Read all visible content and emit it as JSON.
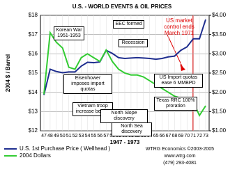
{
  "chart_data": {
    "type": "line",
    "title": "U.S. - WORLD EVENTS & OIL PRICES",
    "x_label": "1947 - 1973",
    "y_label": "2004 $ / Barrel",
    "categories": [
      "47",
      "48",
      "49",
      "50",
      "51",
      "52",
      "53",
      "54",
      "55",
      "56",
      "57",
      "58",
      "59",
      "60",
      "61",
      "62",
      "63",
      "64",
      "65",
      "66",
      "67",
      "68",
      "69",
      "70",
      "71",
      "72",
      "73"
    ],
    "series": [
      {
        "name": "U.S. 1st Purchase Price ( Wellhead )",
        "color": "#1f2e8f",
        "axis": "y2",
        "values": [
          1.93,
          2.6,
          2.54,
          2.51,
          2.53,
          2.53,
          2.68,
          2.78,
          2.77,
          2.79,
          3.09,
          3.01,
          2.9,
          2.88,
          2.89,
          2.9,
          2.89,
          2.88,
          2.86,
          2.88,
          2.92,
          2.94,
          3.09,
          3.18,
          3.39,
          3.39,
          3.89
        ]
      },
      {
        "name": "2004 Dollars",
        "color": "#33cc33",
        "axis": "y",
        "values": [
          13.9,
          17.1,
          16.6,
          16.3,
          15.3,
          15.2,
          15.8,
          16.0,
          15.8,
          15.6,
          16.2,
          15.6,
          15.2,
          15.0,
          14.9,
          14.9,
          14.8,
          14.6,
          14.4,
          14.2,
          14.0,
          13.8,
          13.7,
          13.4,
          13.5,
          12.8,
          13.3
        ]
      }
    ],
    "ylim": [
      12,
      18
    ],
    "yticks": [
      {
        "value": 12,
        "label": "$12"
      },
      {
        "value": 13,
        "label": "$13"
      },
      {
        "value": 14,
        "label": "$14"
      },
      {
        "value": 15,
        "label": "$15"
      },
      {
        "value": 16,
        "label": "$16"
      },
      {
        "value": 17,
        "label": "$17"
      },
      {
        "value": 18,
        "label": "$18"
      }
    ],
    "y2lim": [
      1,
      4
    ],
    "y2ticks": [
      {
        "value": 1,
        "label": "$1.00"
      },
      {
        "value": 1.5,
        "label": "$1.50"
      },
      {
        "value": 2,
        "label": "$2.00"
      },
      {
        "value": 2.5,
        "label": "$2.50"
      },
      {
        "value": 3,
        "label": "$3.00"
      },
      {
        "value": 3.5,
        "label": "$3.50"
      },
      {
        "value": 4,
        "label": "$4.00"
      }
    ],
    "grid": true,
    "annotations": [
      {
        "text": "Korean War 1951-1953"
      },
      {
        "text": "EEC formed"
      },
      {
        "text": "Recession"
      },
      {
        "text": "US market control ends March 1971",
        "color": "#e00000"
      },
      {
        "text": "US Import quotas ease 6 MMBPD"
      },
      {
        "text": "Eisenhower imposes import quotas"
      },
      {
        "text": "Texas RRC 100% proration"
      },
      {
        "text": "Vietnam troop increase begins"
      },
      {
        "text": "North Slope discovery"
      },
      {
        "text": "North Sea discovery"
      }
    ],
    "footer": [
      "WTRG Economics ©2003-2005",
      "www.wtrg.com",
      "(479) 293-4081"
    ]
  }
}
